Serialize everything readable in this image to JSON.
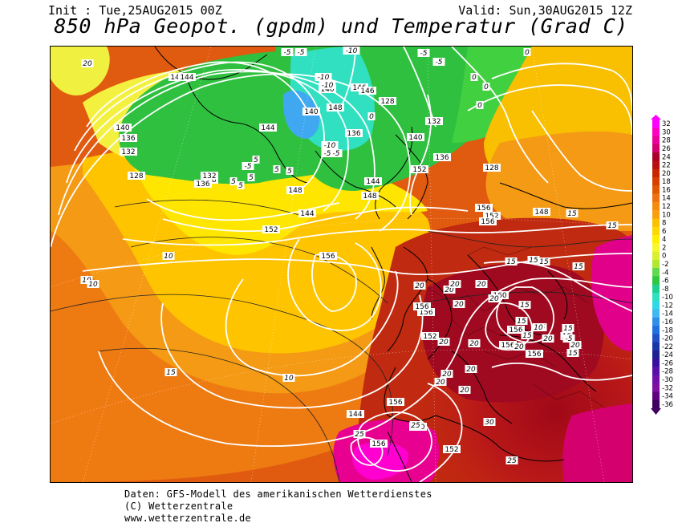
{
  "header": {
    "init": "Init : Tue,25AUG2015 00Z",
    "valid": "Valid: Sun,30AUG2015 12Z",
    "title": "850 hPa Geopot. (gpdm) und Temperatur (Grad C)"
  },
  "colorbar": {
    "labels": [
      "32",
      "30",
      "28",
      "26",
      "24",
      "22",
      "20",
      "18",
      "16",
      "14",
      "12",
      "10",
      "8",
      "6",
      "4",
      "2",
      "0",
      "-2",
      "-4",
      "-6",
      "-8",
      "-10",
      "-12",
      "-14",
      "-16",
      "-18",
      "-20",
      "-22",
      "-24",
      "-26",
      "-28",
      "-30",
      "-32",
      "-34",
      "-36"
    ],
    "colors": [
      "#ff00ff",
      "#ff00c0",
      "#e8009a",
      "#d00070",
      "#a80028",
      "#b81010",
      "#c82800",
      "#d84000",
      "#e05800",
      "#ee7010",
      "#f48a10",
      "#f8a010",
      "#fcc000",
      "#ffd800",
      "#fff000",
      "#f8f830",
      "#d8f030",
      "#b0e830",
      "#60d850",
      "#30c840",
      "#20d090",
      "#30e0c0",
      "#30d8e8",
      "#40b8f0",
      "#3090e8",
      "#2070e0",
      "#2050c8",
      "#1838a8",
      "#202090",
      "#3810a0",
      "#5810a8",
      "#7010a8",
      "#8010a0",
      "#600080",
      "#400060"
    ]
  },
  "map": {
    "geopotential_labels": [
      "144",
      "144",
      "140",
      "136",
      "132",
      "128",
      "128",
      "136",
      "132",
      "144",
      "146",
      "146",
      "148",
      "128",
      "140",
      "136",
      "140",
      "132",
      "136",
      "140",
      "144",
      "148",
      "152",
      "156",
      "152",
      "148",
      "148",
      "144",
      "152",
      "156",
      "156",
      "156",
      "160",
      "156",
      "152",
      "156",
      "156",
      "156",
      "156",
      "156",
      "152",
      "140",
      "144",
      "128"
    ],
    "temperature_labels": [
      "20",
      "-5",
      "-5",
      "-10",
      "-10",
      "-10",
      "-10",
      "-5",
      "-5",
      "-5",
      "0",
      "0",
      "-5",
      "-5",
      "0",
      "0",
      "0",
      "5",
      "5",
      "5",
      "5",
      "5",
      "5",
      "10",
      "10",
      "10",
      "10",
      "15",
      "15",
      "15",
      "15",
      "15",
      "15",
      "15",
      "20",
      "20",
      "20",
      "20",
      "20",
      "20",
      "20",
      "20",
      "20",
      "20",
      "20",
      "20",
      "20",
      "25",
      "25",
      "25",
      "30",
      "15",
      "15",
      "10",
      "15",
      "20",
      "15",
      "-5",
      "15",
      "15",
      "15",
      "20"
    ]
  },
  "footer": {
    "line1": "Daten: GFS-Modell des amerikanischen Wetterdienstes",
    "line2": "(C) Wetterzentrale",
    "line3": "www.wetterzentrale.de"
  }
}
